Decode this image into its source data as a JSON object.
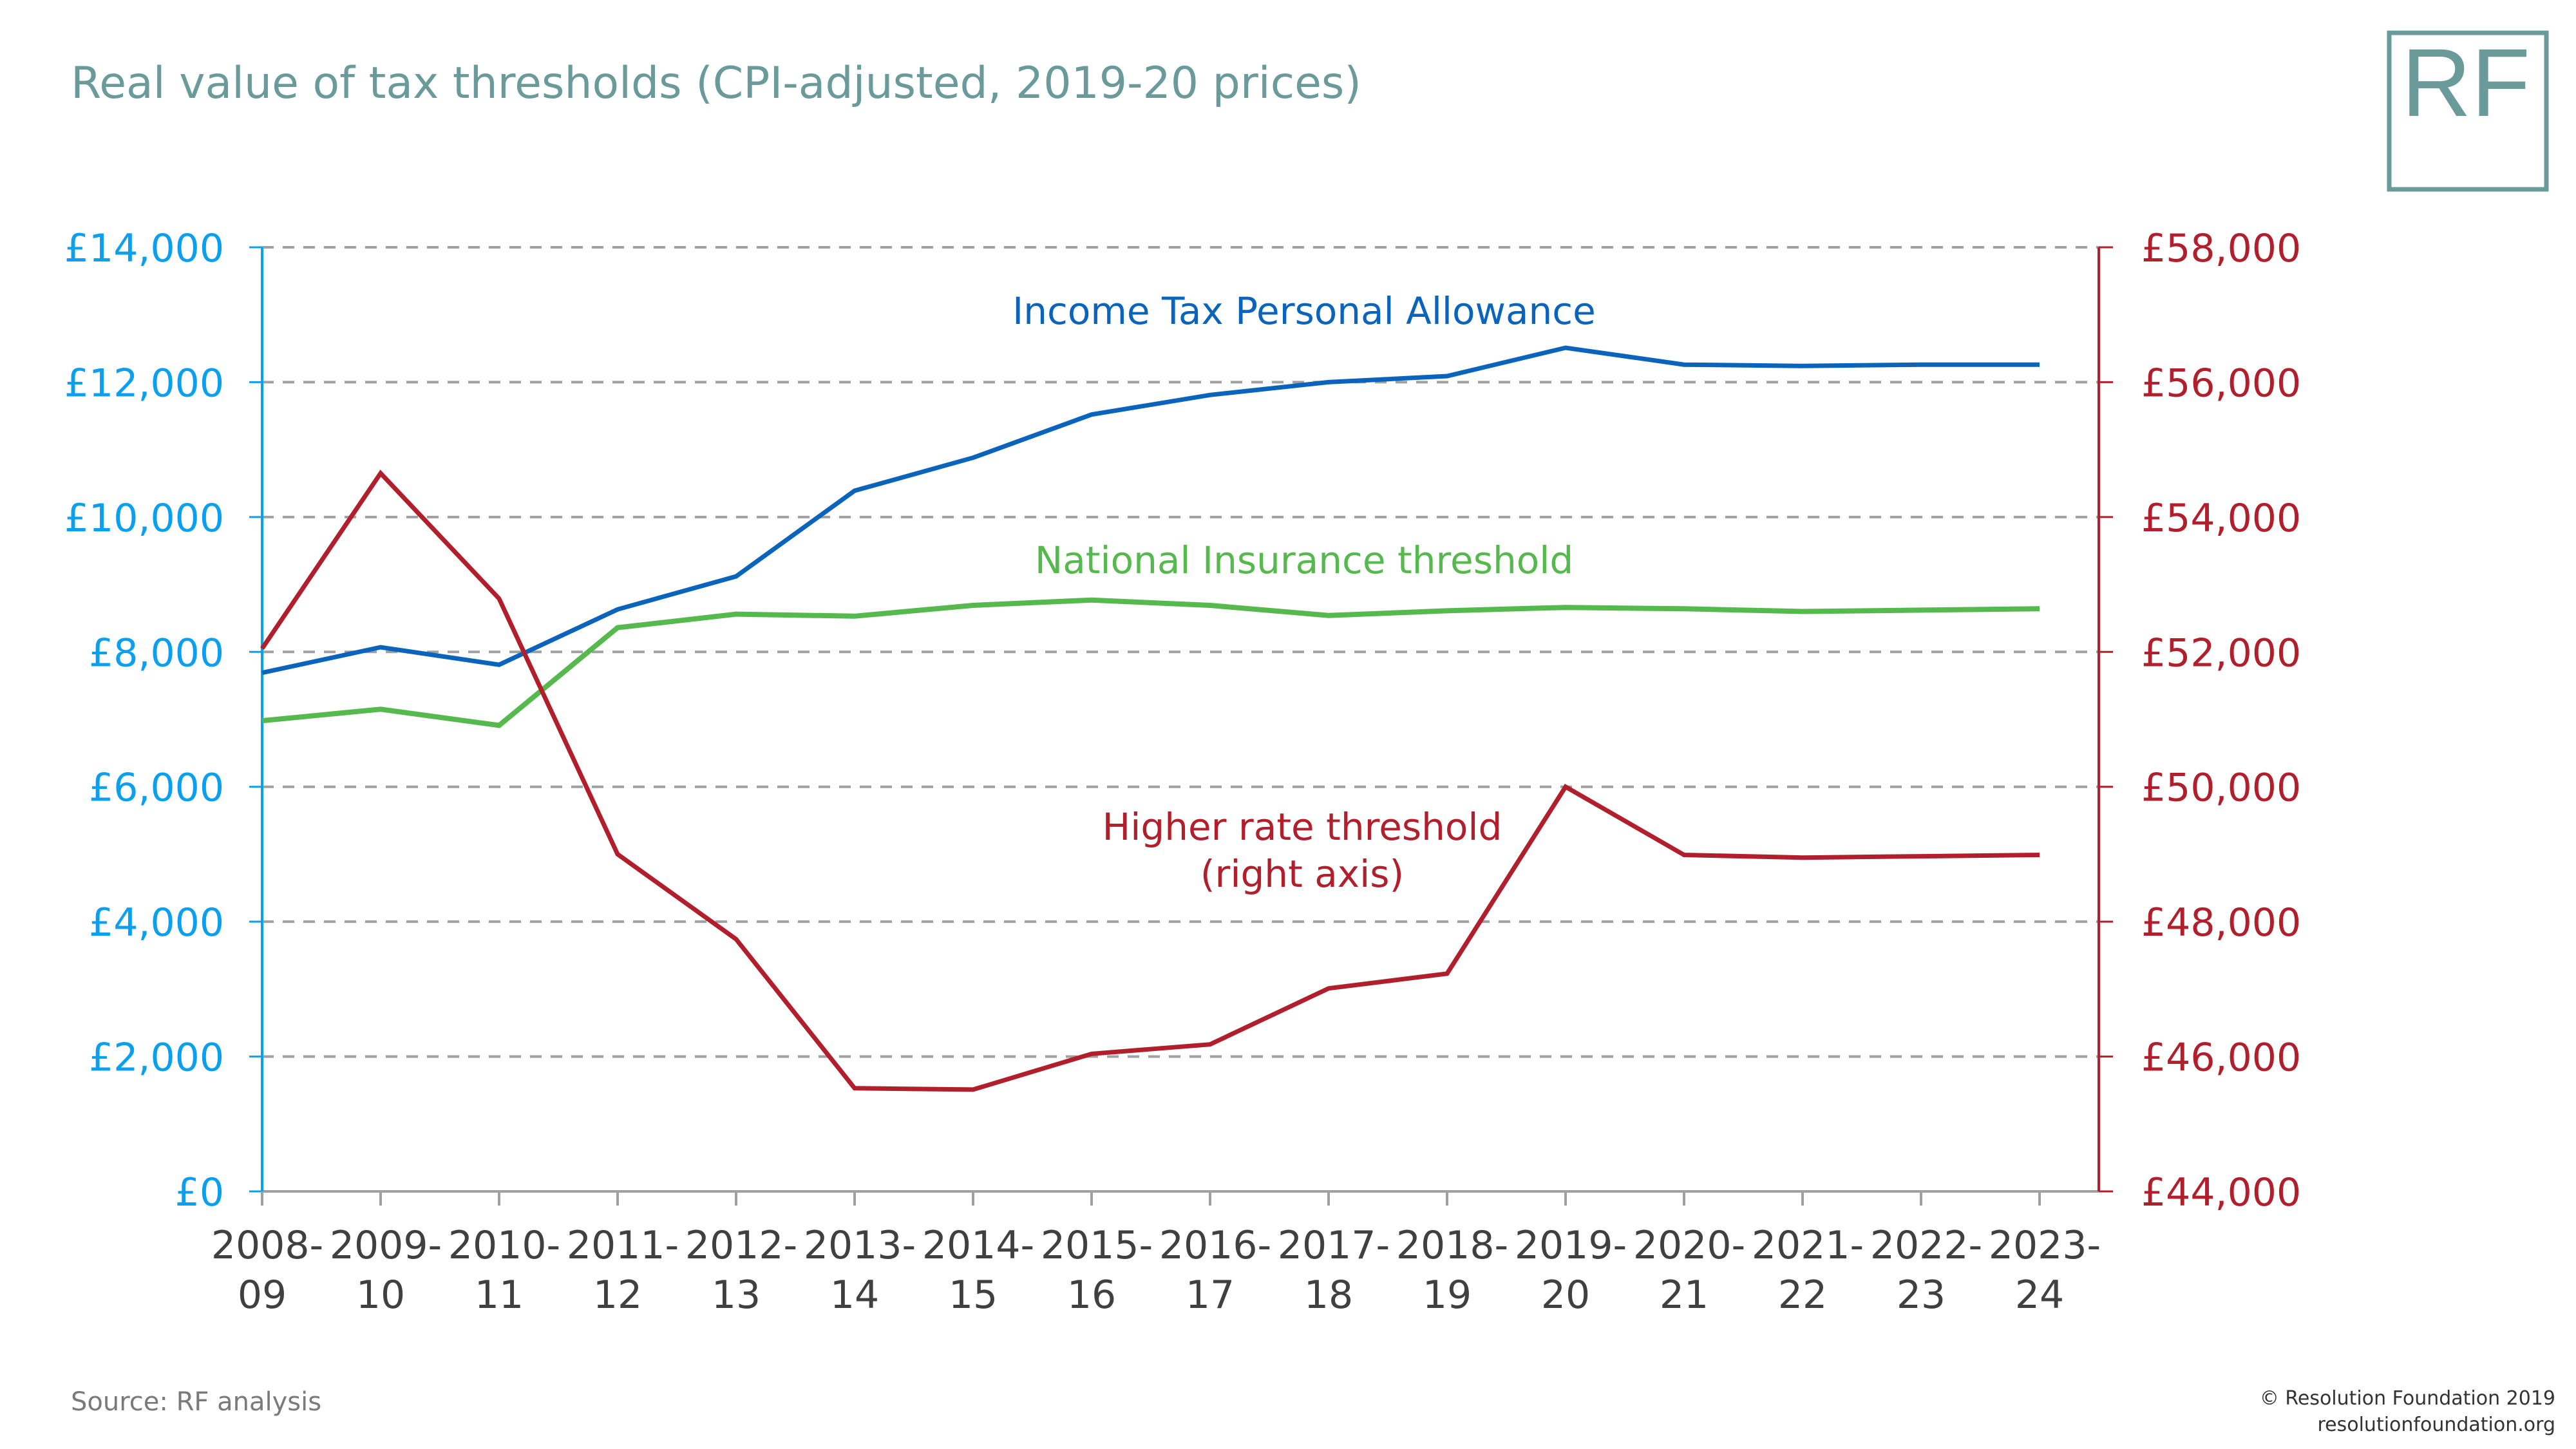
{
  "header": {
    "title": "Real value of tax thresholds (CPI-adjusted, 2019-20 prices)",
    "logo_text": "RF"
  },
  "footer": {
    "source": "Source: RF analysis",
    "copyright": "© Resolution Foundation 2019",
    "website": "resolutionfoundation.org"
  },
  "colors": {
    "title": "#6a9a9a",
    "left_axis": "#0aa0ef",
    "right_axis": "#b11f2d",
    "personal_allowance": "#0a64bc",
    "national_insurance": "#56b94e",
    "higher_rate": "#b11f2d",
    "gridline": "#a0a0a0",
    "x_axis": "#a0a0a0"
  },
  "chart_data": {
    "type": "line",
    "title": "Real value of tax thresholds (CPI-adjusted, 2019-20 prices)",
    "xlabel": "",
    "ylabel_left": "",
    "ylabel_right": "",
    "categories": [
      [
        "2008-",
        "09"
      ],
      [
        "2009-",
        "10"
      ],
      [
        "2010-",
        "11"
      ],
      [
        "2011-",
        "12"
      ],
      [
        "2012-",
        "13"
      ],
      [
        "2013-",
        "14"
      ],
      [
        "2014-",
        "15"
      ],
      [
        "2015-",
        "16"
      ],
      [
        "2016-",
        "17"
      ],
      [
        "2017-",
        "18"
      ],
      [
        "2018-",
        "19"
      ],
      [
        "2019-",
        "20"
      ],
      [
        "2020-",
        "21"
      ],
      [
        "2021-",
        "22"
      ],
      [
        "2022-",
        "23"
      ],
      [
        "2023-",
        "24"
      ]
    ],
    "y_left": {
      "range": [
        0,
        14000
      ],
      "ticks": [
        0,
        2000,
        4000,
        6000,
        8000,
        10000,
        12000,
        14000
      ],
      "tick_labels": [
        "£0",
        "£2,000",
        "£4,000",
        "£6,000",
        "£8,000",
        "£10,000",
        "£12,000",
        "£14,000"
      ]
    },
    "y_right": {
      "range": [
        44000,
        58000
      ],
      "ticks": [
        44000,
        46000,
        48000,
        50000,
        52000,
        54000,
        56000,
        58000
      ],
      "tick_labels": [
        "£44,000",
        "£46,000",
        "£48,000",
        "£50,000",
        "£52,000",
        "£54,000",
        "£56,000",
        "£58,000"
      ]
    },
    "grid": true,
    "grid_style": "dashed-horizontal",
    "legend": "inline-labels",
    "series": [
      {
        "name": "Income Tax Personal Allowance",
        "axis": "left",
        "color": "#0a64bc",
        "label_lines": [
          "Income Tax Personal Allowance"
        ],
        "values": [
          7690,
          8070,
          7810,
          8630,
          9120,
          10390,
          10880,
          11520,
          11810,
          12000,
          12090,
          12510,
          12260,
          12240,
          12260,
          12260
        ]
      },
      {
        "name": "National Insurance threshold",
        "axis": "left",
        "color": "#56b94e",
        "label_lines": [
          "National Insurance threshold"
        ],
        "values": [
          6980,
          7150,
          6910,
          8360,
          8560,
          8530,
          8690,
          8770,
          8690,
          8540,
          8610,
          8660,
          8640,
          8600,
          8620,
          8640
        ]
      },
      {
        "name": "Higher rate threshold (right axis)",
        "axis": "right",
        "color": "#b11f2d",
        "label_lines": [
          "Higher rate threshold",
          "(right axis)"
        ],
        "values": [
          52050,
          54650,
          52790,
          49000,
          47740,
          45530,
          45510,
          46040,
          46180,
          47010,
          47230,
          50000,
          48990,
          48950,
          48970,
          48990
        ]
      }
    ]
  }
}
